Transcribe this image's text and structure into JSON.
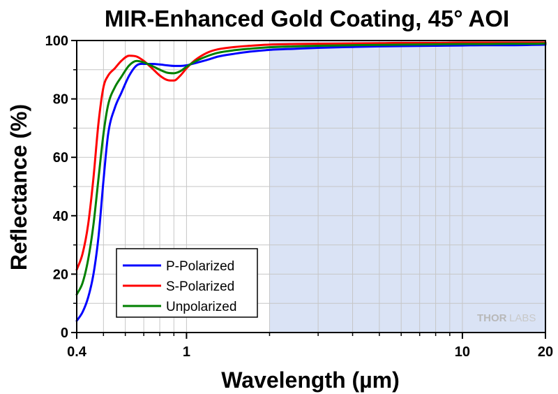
{
  "chart_data": {
    "type": "line",
    "title": "MIR-Enhanced Gold Coating, 45° AOI",
    "xlabel": "Wavelength (µm)",
    "ylabel": "Reflectance (%)",
    "x_scale": "log",
    "xlim": [
      0.4,
      20
    ],
    "ylim": [
      0,
      100
    ],
    "x_ticks": [
      0.4,
      1,
      10,
      20
    ],
    "x_tick_labels": [
      "0.4",
      "1",
      "10",
      "20"
    ],
    "y_ticks": [
      0,
      20,
      40,
      60,
      80,
      100
    ],
    "y_tick_labels": [
      "0",
      "20",
      "40",
      "60",
      "80",
      "100"
    ],
    "grid": true,
    "legend_position": "bottom-left",
    "shaded_region": {
      "x_start": 2,
      "x_end": 20,
      "color": "#dae3f5"
    },
    "watermark": {
      "part1": "THOR",
      "part2": "LABS"
    },
    "series": [
      {
        "name": "P-Polarized",
        "color": "#0000ff",
        "x": [
          0.4,
          0.42,
          0.44,
          0.46,
          0.48,
          0.5,
          0.52,
          0.55,
          0.58,
          0.62,
          0.66,
          0.7,
          0.75,
          0.8,
          0.85,
          0.9,
          0.95,
          1.0,
          1.05,
          1.1,
          1.2,
          1.3,
          1.5,
          1.7,
          2.0,
          2.5,
          3,
          4,
          5,
          6,
          8,
          10,
          12,
          15,
          18,
          20
        ],
        "y": [
          4,
          7,
          12,
          20,
          33,
          52,
          68,
          77,
          82,
          88,
          91.5,
          92,
          92,
          91.8,
          91.5,
          91.3,
          91.3,
          91.5,
          92,
          92.5,
          93.5,
          94.5,
          95.5,
          96.2,
          96.8,
          97.2,
          97.5,
          97.8,
          98,
          98.1,
          98.2,
          98.3,
          98.4,
          98.4,
          98.5,
          98.6
        ]
      },
      {
        "name": "S-Polarized",
        "color": "#ff0000",
        "x": [
          0.4,
          0.42,
          0.44,
          0.46,
          0.48,
          0.5,
          0.52,
          0.55,
          0.58,
          0.62,
          0.66,
          0.7,
          0.75,
          0.8,
          0.85,
          0.9,
          0.95,
          1.0,
          1.05,
          1.1,
          1.2,
          1.3,
          1.5,
          1.7,
          2.0,
          2.5,
          3,
          4,
          5,
          6,
          8,
          10,
          12,
          15,
          18,
          20
        ],
        "y": [
          21.5,
          27,
          37,
          53,
          72,
          84,
          88,
          90.5,
          93,
          94.8,
          94.5,
          93,
          90.5,
          88,
          86.5,
          86.3,
          88,
          90.5,
          92.5,
          94,
          96,
          97,
          97.8,
          98.2,
          98.6,
          98.8,
          98.9,
          99,
          99.1,
          99.2,
          99.2,
          99.3,
          99.3,
          99.3,
          99.3,
          99.3
        ]
      },
      {
        "name": "Unpolarized",
        "color": "#008000",
        "x": [
          0.4,
          0.42,
          0.44,
          0.46,
          0.48,
          0.5,
          0.52,
          0.55,
          0.58,
          0.62,
          0.66,
          0.7,
          0.75,
          0.8,
          0.85,
          0.9,
          0.95,
          1.0,
          1.05,
          1.1,
          1.2,
          1.3,
          1.5,
          1.7,
          2.0,
          2.5,
          3,
          4,
          5,
          6,
          8,
          10,
          12,
          15,
          18,
          20
        ],
        "y": [
          13,
          17,
          25,
          37,
          53,
          68,
          78,
          84,
          87.5,
          91.5,
          93,
          92.5,
          91.3,
          90,
          89,
          88.8,
          89.5,
          91,
          92.3,
          93.3,
          94.8,
          95.8,
          96.7,
          97.2,
          97.7,
          98,
          98.2,
          98.4,
          98.5,
          98.6,
          98.7,
          98.8,
          98.8,
          98.9,
          98.9,
          99
        ]
      }
    ]
  }
}
